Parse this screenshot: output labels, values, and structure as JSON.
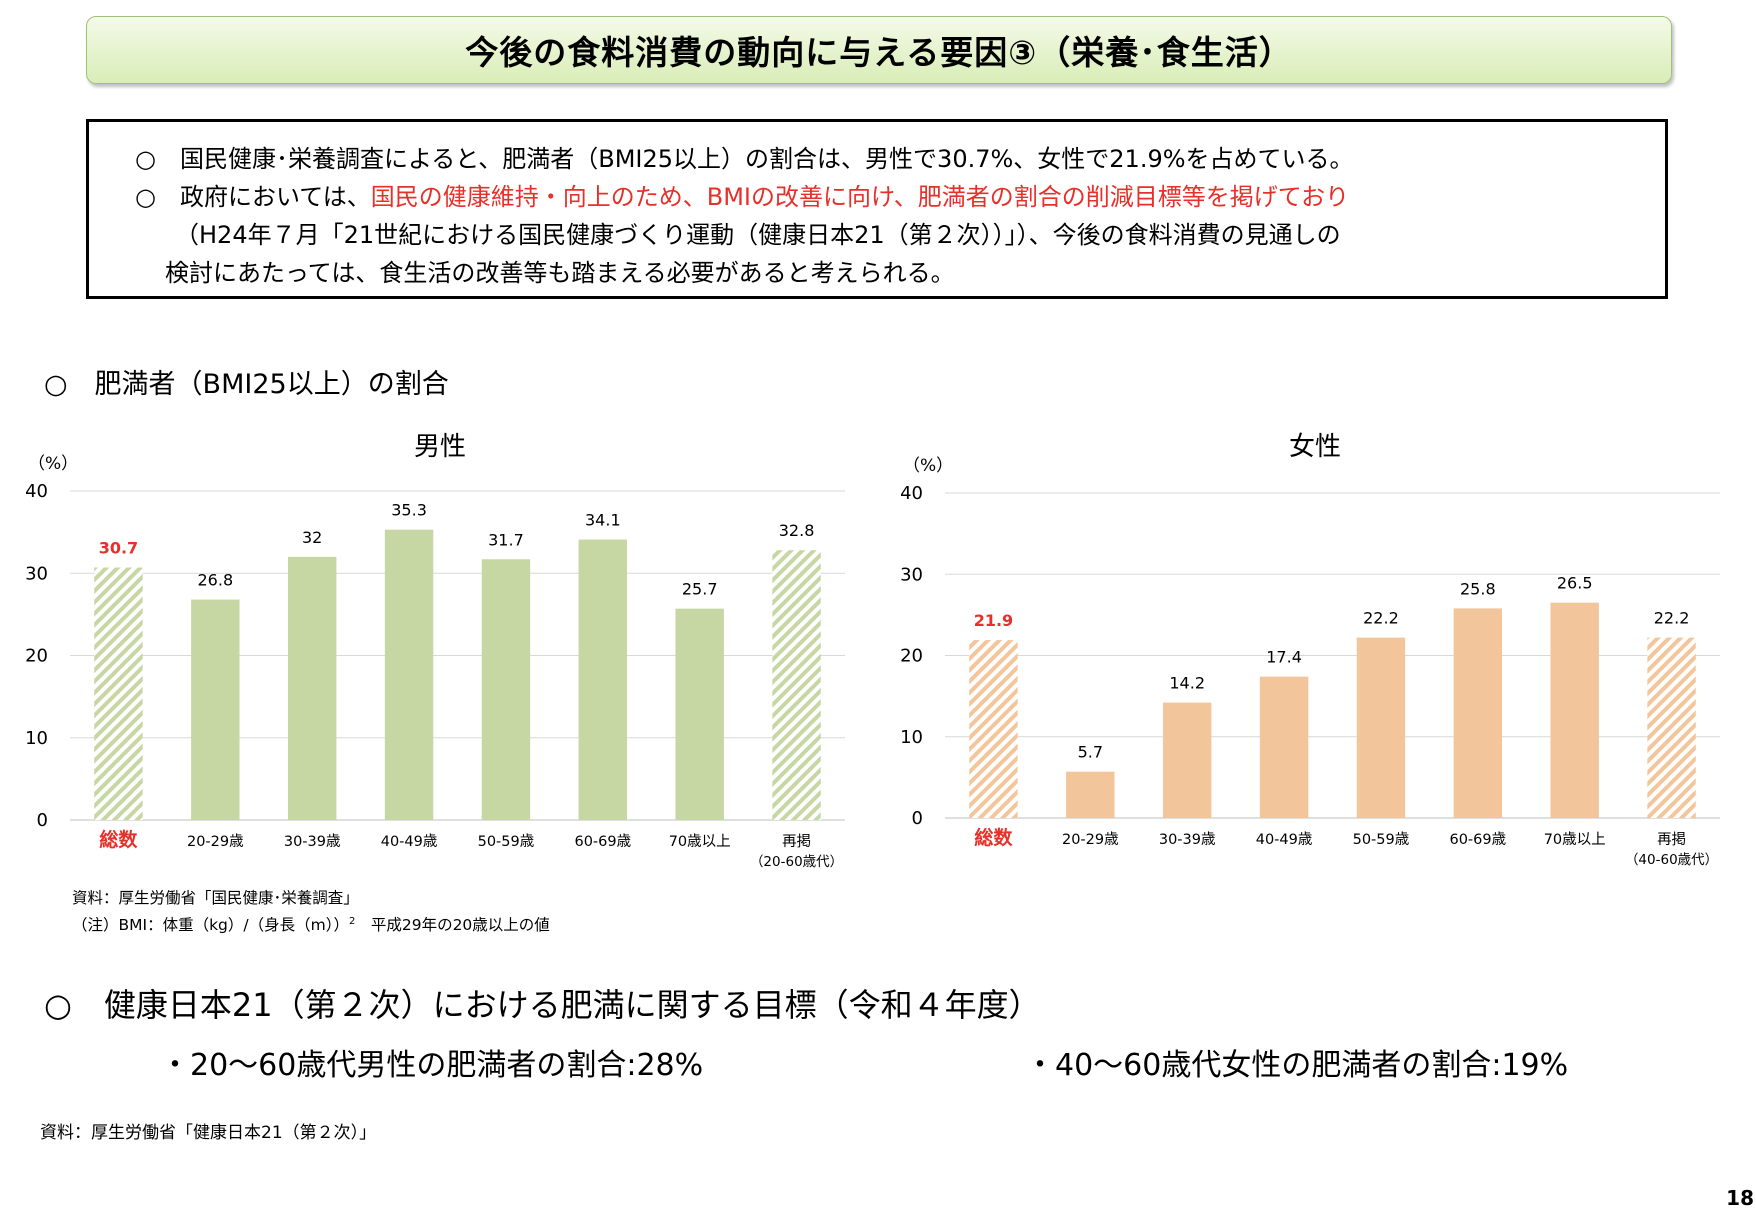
{
  "title": "今後の食料消費の動向に与える要因③（栄養･食生活）",
  "summary": {
    "line1": "○　国民健康･栄養調査によると、肥満者（BMI25以上）の割合は、男性で30.7%、女性で21.9%を占めている。",
    "line2_pre": "○　政府においては、",
    "line2_red": "国民の健康維持・向上のため、BMIの改善に向け、肥満者の割合の削減目標等を掲げており",
    "line3": "（H24年７月「21世紀における国民健康づくり運動（健康日本21（第２次））」）、今後の食料消費の見通しの",
    "line4": "検討にあたっては、食生活の改善等も踏まえる必要があると考えられる。"
  },
  "section1_title": "○　肥満者（BMI25以上）の割合",
  "chart_data": [
    {
      "type": "bar",
      "title": "男性",
      "ylabel": "（%）",
      "ylim": [
        0,
        40
      ],
      "yticks": [
        0,
        10,
        20,
        30,
        40
      ],
      "grid": true,
      "categories": [
        "総数",
        "20-29歳",
        "30-39歳",
        "40-49歳",
        "50-59歳",
        "60-69歳",
        "70歳以上",
        "再掲"
      ],
      "category_sub": [
        "",
        "",
        "",
        "",
        "",
        "",
        "",
        "（20-60歳代）"
      ],
      "values": [
        30.7,
        26.8,
        32,
        35.3,
        31.7,
        34.1,
        25.7,
        32.8
      ],
      "value_labels": [
        "30.7",
        "26.8",
        "32",
        "35.3",
        "31.7",
        "34.1",
        "25.7",
        "32.8"
      ],
      "highlight_index": 0,
      "patterned": [
        0,
        7
      ],
      "colors": {
        "bar": "#c6d7a4",
        "pattern_bg": "#ffffff",
        "highlight_text": "#e8302a"
      }
    },
    {
      "type": "bar",
      "title": "女性",
      "ylabel": "（%）",
      "ylim": [
        0,
        40
      ],
      "yticks": [
        0,
        10,
        20,
        30,
        40
      ],
      "grid": true,
      "categories": [
        "総数",
        "20-29歳",
        "30-39歳",
        "40-49歳",
        "50-59歳",
        "60-69歳",
        "70歳以上",
        "再掲"
      ],
      "category_sub": [
        "",
        "",
        "",
        "",
        "",
        "",
        "",
        "（40-60歳代）"
      ],
      "values": [
        21.9,
        5.7,
        14.2,
        17.4,
        22.2,
        25.8,
        26.5,
        22.2
      ],
      "value_labels": [
        "21.9",
        "5.7",
        "14.2",
        "17.4",
        "22.2",
        "25.8",
        "26.5",
        "22.2"
      ],
      "highlight_index": 0,
      "patterned": [
        0,
        7
      ],
      "colors": {
        "bar": "#f3c59a",
        "pattern_bg": "#ffffff",
        "highlight_text": "#e8302a"
      }
    }
  ],
  "notes": {
    "source": "資料：厚生労働省「国民健康･栄養調査」",
    "note_pre": "（注）BMI：体重（kg）/（身長（m））",
    "note_sup": "2",
    "note_post": "　平成29年の20歳以上の値"
  },
  "section2_title": "○　健康日本21（第２次）における肥満に関する目標（令和４年度）",
  "targets": {
    "male": "・20～60歳代男性の肥満者の割合:28%",
    "female": "・40～60歳代女性の肥満者の割合:19%"
  },
  "footer_source": "資料：厚生労働省「健康日本21（第２次）」",
  "page_number": "18"
}
